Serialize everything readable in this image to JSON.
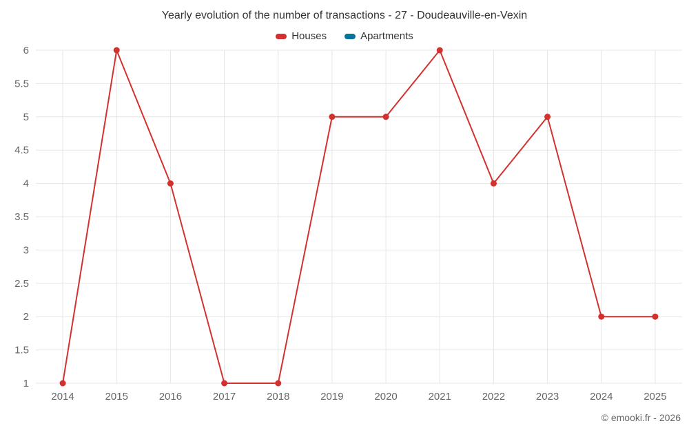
{
  "title": "Yearly evolution of the number of transactions - 27 - Doudeauville-en-Vexin",
  "legend": {
    "houses": {
      "label": "Houses",
      "color": "#d2312d"
    },
    "apartments": {
      "label": "Apartments",
      "color": "#06749b"
    }
  },
  "footer": "© emooki.fr - 2026",
  "colors": {
    "houses_line": "#d2312d",
    "apartments_line": "#06749b",
    "grid": "#e6e6e6",
    "tick_text": "#666666",
    "title_text": "#333333"
  },
  "chart_data": {
    "type": "line",
    "title": "Yearly evolution of the number of transactions - 27 - Doudeauville-en-Vexin",
    "categories": [
      "2014",
      "2015",
      "2016",
      "2017",
      "2018",
      "2019",
      "2020",
      "2021",
      "2022",
      "2023",
      "2024",
      "2025"
    ],
    "series": [
      {
        "name": "Houses",
        "color": "#d2312d",
        "values": [
          1,
          6,
          4,
          1,
          1,
          5,
          5,
          6,
          4,
          5,
          2,
          2
        ]
      },
      {
        "name": "Apartments",
        "color": "#06749b",
        "values": []
      }
    ],
    "xlabel": "",
    "ylabel": "",
    "ylim": [
      1,
      6
    ],
    "ytick_step": 0.5,
    "yticks": [
      1,
      1.5,
      2,
      2.5,
      3,
      3.5,
      4,
      4.5,
      5,
      5.5,
      6
    ],
    "grid": true,
    "legend_position": "top"
  }
}
